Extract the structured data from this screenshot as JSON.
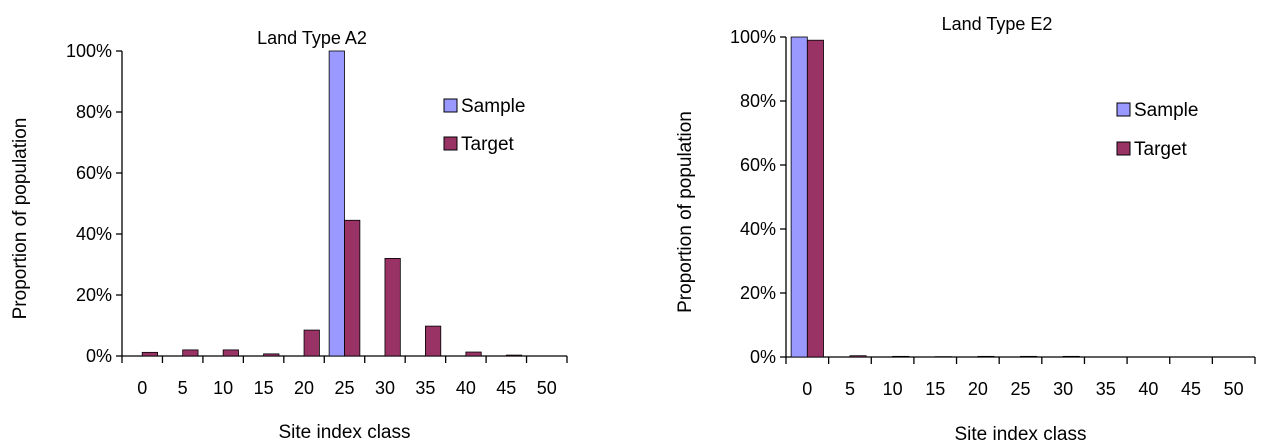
{
  "chart_data": [
    {
      "type": "bar",
      "title": "Land Type A2",
      "xlabel": "Site index class",
      "ylabel": "Proportion of population",
      "categories": [
        "0",
        "5",
        "10",
        "15",
        "20",
        "25",
        "30",
        "35",
        "40",
        "45",
        "50"
      ],
      "ylim": [
        0,
        1
      ],
      "y_ticks": [
        "0%",
        "20%",
        "40%",
        "60%",
        "80%",
        "100%"
      ],
      "grid": false,
      "legend_position": "right",
      "series": [
        {
          "name": "Sample",
          "color": "#9999FF",
          "values": [
            0,
            0,
            0,
            0,
            0,
            1.0,
            0,
            0,
            0,
            0,
            0
          ]
        },
        {
          "name": "Target",
          "color": "#993366",
          "values": [
            0.012,
            0.02,
            0.02,
            0.007,
            0.085,
            0.445,
            0.32,
            0.098,
            0.013,
            0.003,
            0
          ]
        }
      ]
    },
    {
      "type": "bar",
      "title": "Land Type E2",
      "xlabel": "Site index class",
      "ylabel": "Proportion of population",
      "categories": [
        "0",
        "5",
        "10",
        "15",
        "20",
        "25",
        "30",
        "35",
        "40",
        "45",
        "50"
      ],
      "ylim": [
        0,
        1
      ],
      "y_ticks": [
        "0%",
        "20%",
        "40%",
        "60%",
        "80%",
        "100%"
      ],
      "grid": false,
      "legend_position": "right",
      "series": [
        {
          "name": "Sample",
          "color": "#9999FF",
          "values": [
            1.0,
            0,
            0,
            0,
            0,
            0,
            0,
            0,
            0,
            0,
            0
          ]
        },
        {
          "name": "Target",
          "color": "#993366",
          "values": [
            0.99,
            0.004,
            0.002,
            0.001,
            0.002,
            0.002,
            0.002,
            0,
            0,
            0,
            0
          ]
        }
      ]
    }
  ]
}
